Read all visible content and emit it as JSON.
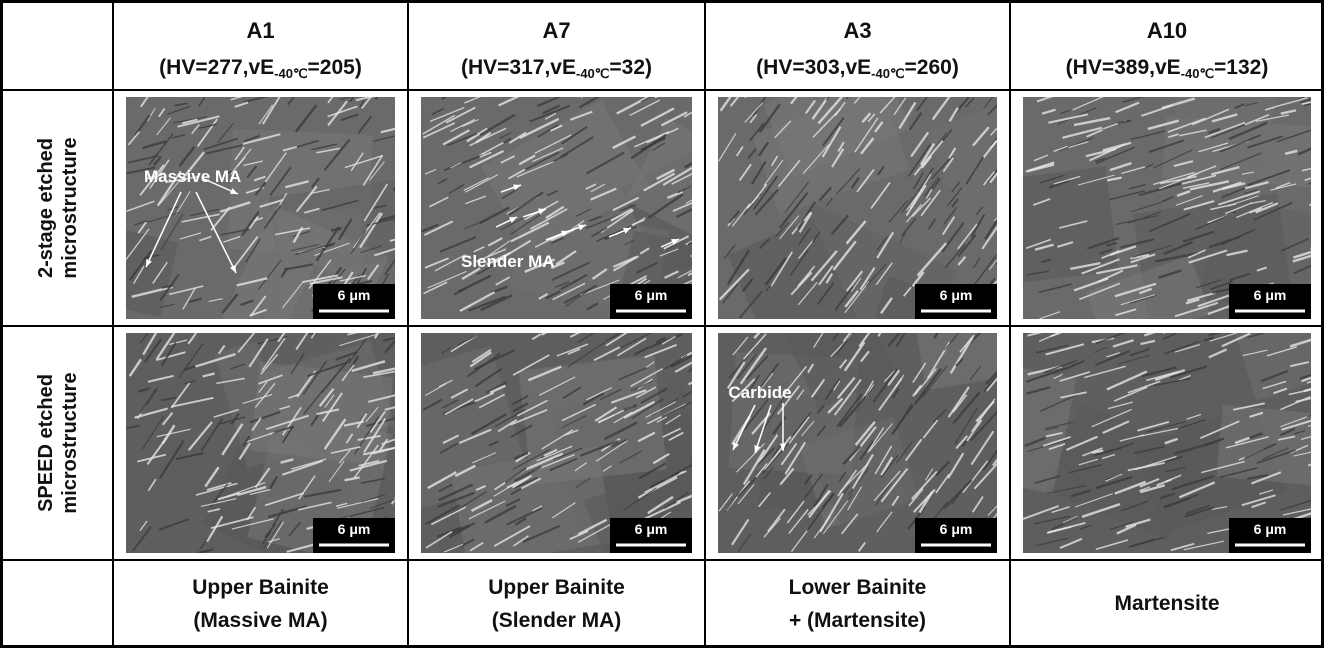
{
  "columns": [
    {
      "sample": "A1",
      "props_pre": "(HV=277,vE",
      "props_sub": "-40℃",
      "props_post": "=205)",
      "phase_line1": "Upper Bainite",
      "phase_line2": "(Massive MA)"
    },
    {
      "sample": "A7",
      "props_pre": "(HV=317,vE",
      "props_sub": "-40℃",
      "props_post": "=32)",
      "phase_line1": "Upper Bainite",
      "phase_line2": "(Slender MA)"
    },
    {
      "sample": "A3",
      "props_pre": "(HV=303,vE",
      "props_sub": "-40℃",
      "props_post": "=260)",
      "phase_line1": "Lower Bainite",
      "phase_line2": "+ (Martensite)"
    },
    {
      "sample": "A10",
      "props_pre": "(HV=389,vE",
      "props_sub": "-40℃",
      "props_post": "=132)",
      "phase_line1": "Martensite"
    }
  ],
  "rows": [
    {
      "label_line1": "2-stage etched",
      "label_line2": "microstructure",
      "images": [
        {
          "scale_bar": "6 μm",
          "annotation": "Massive MA"
        },
        {
          "scale_bar": "6 μm",
          "annotation": "Slender MA"
        },
        {
          "scale_bar": "6 μm"
        },
        {
          "scale_bar": "6 μm"
        }
      ]
    },
    {
      "label_line1": "SPEED etched",
      "label_line2": "microstructure",
      "images": [
        {
          "scale_bar": "6 μm"
        },
        {
          "scale_bar": "6 μm"
        },
        {
          "scale_bar": "6 μm",
          "annotation": "Carbide"
        },
        {
          "scale_bar": "6 μm"
        }
      ]
    }
  ]
}
